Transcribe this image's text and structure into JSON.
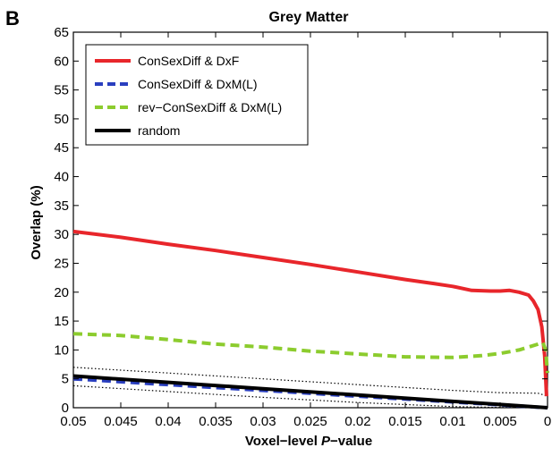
{
  "chart_data": {
    "type": "line",
    "panel_label": "B",
    "title": "Grey Matter",
    "xlabel_prefix": "Voxel−level ",
    "xlabel_italic": "P",
    "xlabel_suffix": "−value",
    "ylabel": "Overlap (%)",
    "xlim": [
      0.05,
      0
    ],
    "x_reversed": true,
    "ylim": [
      0,
      65
    ],
    "x_ticks": [
      0.05,
      0.045,
      0.04,
      0.035,
      0.03,
      0.025,
      0.02,
      0.015,
      0.01,
      0.005,
      0
    ],
    "x_tick_labels": [
      "0.05",
      "0.045",
      "0.04",
      "0.035",
      "0.03",
      "0.025",
      "0.02",
      "0.015",
      "0.01",
      "0.005",
      "0"
    ],
    "y_ticks": [
      0,
      5,
      10,
      15,
      20,
      25,
      30,
      35,
      40,
      45,
      50,
      55,
      60,
      65
    ],
    "y_tick_labels": [
      "0",
      "5",
      "10",
      "15",
      "20",
      "25",
      "30",
      "35",
      "40",
      "45",
      "50",
      "55",
      "60",
      "65"
    ],
    "grid": false,
    "legend_position": "top-left",
    "series": [
      {
        "name": "ConSexDiff & DxF",
        "color": "#e8262b",
        "style": "solid",
        "x": [
          0.05,
          0.045,
          0.04,
          0.035,
          0.03,
          0.025,
          0.02,
          0.015,
          0.012,
          0.01,
          0.008,
          0.006,
          0.005,
          0.004,
          0.003,
          0.002,
          0.0015,
          0.001,
          0.0006,
          0.0003,
          0.0001
        ],
        "y": [
          30.5,
          29.5,
          28.3,
          27.2,
          26.0,
          24.8,
          23.5,
          22.2,
          21.5,
          21.0,
          20.3,
          20.2,
          20.2,
          20.3,
          20.0,
          19.5,
          18.5,
          17.0,
          14.0,
          9.0,
          2.0
        ]
      },
      {
        "name": "ConSexDiff & DxM(L)",
        "color": "#2a3fbf",
        "style": "dashed",
        "x": [
          0.05,
          0.04,
          0.03,
          0.02,
          0.01,
          0.005,
          0.002,
          0
        ],
        "y": [
          5.0,
          4.0,
          3.0,
          2.0,
          1.0,
          0.5,
          0.2,
          0.0
        ]
      },
      {
        "name": "rev−ConSexDiff & DxM(L)",
        "color": "#8ccc2e",
        "style": "dashed",
        "x": [
          0.05,
          0.045,
          0.04,
          0.035,
          0.03,
          0.025,
          0.02,
          0.015,
          0.01,
          0.007,
          0.005,
          0.003,
          0.002,
          0.001,
          0.0005,
          0.0002,
          0
        ],
        "y": [
          12.8,
          12.5,
          11.8,
          11.0,
          10.5,
          9.8,
          9.3,
          8.8,
          8.7,
          9.0,
          9.4,
          10.0,
          10.5,
          11.0,
          11.3,
          10.0,
          6.0
        ]
      },
      {
        "name": "random",
        "color": "#000000",
        "style": "solid",
        "x": [
          0.05,
          0.04,
          0.03,
          0.02,
          0.01,
          0.005,
          0
        ],
        "y": [
          5.5,
          4.4,
          3.3,
          2.2,
          1.1,
          0.55,
          0.0
        ]
      }
    ],
    "bounds": [
      {
        "x": [
          0.05,
          0.04,
          0.03,
          0.02,
          0.01,
          0.005,
          0.001,
          0
        ],
        "y": [
          7.0,
          6.0,
          5.0,
          4.0,
          3.0,
          2.6,
          2.5,
          2.0
        ]
      },
      {
        "x": [
          0.05,
          0.04,
          0.03,
          0.02,
          0.01,
          0.005,
          0
        ],
        "y": [
          3.8,
          2.8,
          1.8,
          0.9,
          0.2,
          0.05,
          0.0
        ]
      }
    ]
  }
}
